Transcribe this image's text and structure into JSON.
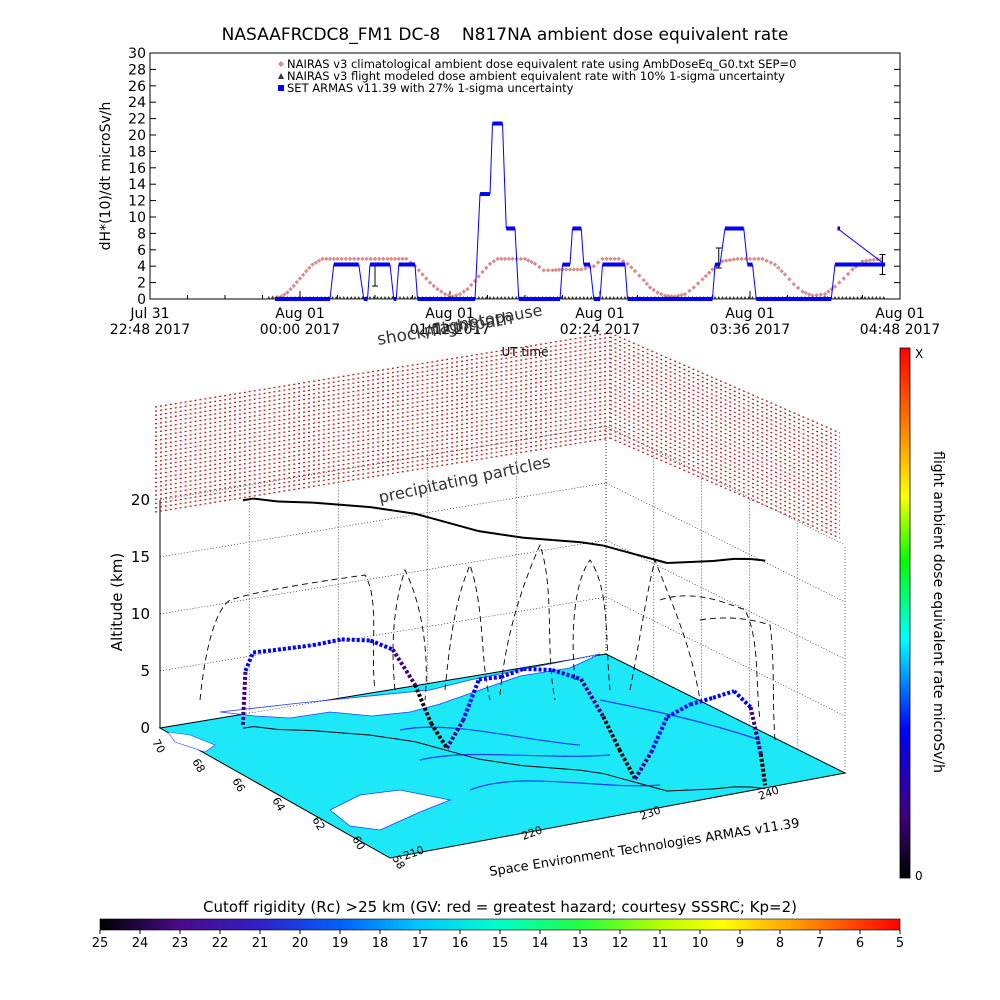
{
  "chart_data": [
    {
      "type": "scatter",
      "title": "NASAAFRCDC8_FM1 DC-8    N817NA ambient dose equivalent rate",
      "xlabel": "UT time",
      "ylabel": "dH*(10)/dt microSv/h",
      "ylim": [
        0,
        30
      ],
      "yticks": [
        0,
        2,
        4,
        6,
        8,
        10,
        12,
        14,
        16,
        18,
        20,
        22,
        24,
        26,
        28,
        30
      ],
      "xrange_hours": [
        0,
        6
      ],
      "xticks": [
        {
          "hour": 0.0,
          "day": "Jul 31",
          "time": "22:48 2017"
        },
        {
          "hour": 1.2,
          "day": "Aug 01",
          "time": "00:00 2017"
        },
        {
          "hour": 2.4,
          "day": "Aug 01",
          "time": "01:12 2017"
        },
        {
          "hour": 3.6,
          "day": "Aug 01",
          "time": "02:24 2017"
        },
        {
          "hour": 4.8,
          "day": "Aug 01",
          "time": "03:36 2017"
        },
        {
          "hour": 6.0,
          "day": "Aug 01",
          "time": "04:48 2017"
        }
      ],
      "legend_position": "top-right",
      "legend": [
        {
          "name": "NAIRAS v3 climatological ambient dose equivalent rate using AmbDoseEq_G0.txt SEP=0",
          "marker": "diamond",
          "color": "#d98c8c"
        },
        {
          "name": "NAIRAS v3 flight modeled dose ambient equivalent rate with 10% 1-sigma uncertainty",
          "marker": "triangle",
          "color": "#333333"
        },
        {
          "name": "SET ARMAS v11.39 with 27% 1-sigma uncertainty",
          "marker": "square",
          "color": "#0000ff"
        }
      ],
      "series": [
        {
          "name": "NAIRAS v3 climatological ambient dose equivalent rate using AmbDoseEq_G0.txt SEP=0",
          "points": [
            [
              0.95,
              0.1
            ],
            [
              1.05,
              0.3
            ],
            [
              1.1,
              0.8
            ],
            [
              1.15,
              1.6
            ],
            [
              1.2,
              2.5
            ],
            [
              1.25,
              3.4
            ],
            [
              1.3,
              4.2
            ],
            [
              1.38,
              4.9
            ],
            [
              1.5,
              4.9
            ],
            [
              1.7,
              4.9
            ],
            [
              1.9,
              4.9
            ],
            [
              2.05,
              4.9
            ],
            [
              2.12,
              4.0
            ],
            [
              2.18,
              3.0
            ],
            [
              2.24,
              2.0
            ],
            [
              2.3,
              1.2
            ],
            [
              2.36,
              0.6
            ],
            [
              2.42,
              0.3
            ],
            [
              2.48,
              0.6
            ],
            [
              2.54,
              1.2
            ],
            [
              2.6,
              2.2
            ],
            [
              2.66,
              3.3
            ],
            [
              2.72,
              4.3
            ],
            [
              2.78,
              4.9
            ],
            [
              2.9,
              4.9
            ],
            [
              3.0,
              4.9
            ],
            [
              3.08,
              4.3
            ],
            [
              3.15,
              3.5
            ],
            [
              3.22,
              3.5
            ],
            [
              3.3,
              3.6
            ],
            [
              3.45,
              3.6
            ],
            [
              3.55,
              4.0
            ],
            [
              3.62,
              4.9
            ],
            [
              3.75,
              4.9
            ],
            [
              3.82,
              4.3
            ],
            [
              3.88,
              3.4
            ],
            [
              3.95,
              2.3
            ],
            [
              4.0,
              1.4
            ],
            [
              4.06,
              0.8
            ],
            [
              4.12,
              0.4
            ],
            [
              4.2,
              0.3
            ],
            [
              4.28,
              0.6
            ],
            [
              4.35,
              1.4
            ],
            [
              4.42,
              2.4
            ],
            [
              4.5,
              3.6
            ],
            [
              4.58,
              4.6
            ],
            [
              4.7,
              4.9
            ],
            [
              4.9,
              4.9
            ],
            [
              5.0,
              4.2
            ],
            [
              5.08,
              3.0
            ],
            [
              5.15,
              1.8
            ],
            [
              5.22,
              0.9
            ],
            [
              5.3,
              0.4
            ],
            [
              5.4,
              0.6
            ],
            [
              5.48,
              1.5
            ],
            [
              5.55,
              2.5
            ],
            [
              5.62,
              3.6
            ],
            [
              5.7,
              4.6
            ],
            [
              5.85,
              4.9
            ]
          ]
        },
        {
          "name": "NAIRAS v3 flight modeled dose ambient equivalent rate with 10% 1-sigma uncertainty",
          "points": [
            [
              0.95,
              0
            ],
            [
              1.4,
              0
            ],
            [
              1.8,
              0
            ],
            [
              2.2,
              0
            ],
            [
              2.6,
              0
            ],
            [
              3.0,
              0
            ],
            [
              3.4,
              0
            ],
            [
              3.8,
              0
            ],
            [
              4.2,
              0
            ],
            [
              4.6,
              0
            ],
            [
              5.0,
              0
            ],
            [
              5.4,
              0
            ],
            [
              5.8,
              0
            ],
            [
              5.88,
              0
            ]
          ],
          "error_bars": [
            [
              1.8,
              2.8
            ],
            [
              4.55,
              5.0
            ],
            [
              5.86,
              4.2
            ]
          ]
        },
        {
          "name": "SET ARMAS v11.39 with 27% 1-sigma uncertainty",
          "segments": [
            [
              [
                1.0,
                0
              ],
              [
                1.44,
                0
              ]
            ],
            [
              [
                1.47,
                4.2
              ],
              [
                1.67,
                4.2
              ]
            ],
            [
              [
                1.71,
                0
              ],
              [
                1.74,
                0
              ]
            ],
            [
              [
                1.76,
                4.2
              ],
              [
                1.92,
                4.2
              ]
            ],
            [
              [
                1.95,
                0
              ],
              [
                1.97,
                0
              ]
            ],
            [
              [
                1.99,
                4.2
              ],
              [
                2.12,
                4.2
              ]
            ],
            [
              [
                2.14,
                0
              ],
              [
                2.6,
                0
              ]
            ],
            [
              [
                2.64,
                12.8
              ],
              [
                2.72,
                12.8
              ]
            ],
            [
              [
                2.74,
                21.4
              ],
              [
                2.82,
                21.4
              ]
            ],
            [
              [
                2.85,
                8.6
              ],
              [
                2.92,
                8.6
              ]
            ],
            [
              [
                2.95,
                0
              ],
              [
                3.28,
                0
              ]
            ],
            [
              [
                3.3,
                4.2
              ],
              [
                3.36,
                4.2
              ]
            ],
            [
              [
                3.38,
                8.6
              ],
              [
                3.45,
                8.6
              ]
            ],
            [
              [
                3.47,
                4.2
              ],
              [
                3.52,
                4.2
              ]
            ],
            [
              [
                3.55,
                0
              ],
              [
                3.6,
                0
              ]
            ],
            [
              [
                3.62,
                4.2
              ],
              [
                3.8,
                4.2
              ]
            ],
            [
              [
                3.82,
                0
              ],
              [
                4.5,
                0
              ]
            ],
            [
              [
                4.52,
                4.2
              ],
              [
                4.56,
                4.2
              ]
            ],
            [
              [
                4.6,
                8.6
              ],
              [
                4.75,
                8.6
              ]
            ],
            [
              [
                4.78,
                4.2
              ],
              [
                4.82,
                4.2
              ]
            ],
            [
              [
                4.85,
                0
              ],
              [
                5.45,
                0
              ]
            ],
            [
              [
                5.48,
                4.2
              ],
              [
                5.88,
                4.2
              ]
            ],
            [
              [
                5.5,
                8.6
              ],
              [
                5.52,
                8.6
              ]
            ]
          ]
        }
      ]
    },
    {
      "type": "scatter",
      "title": "",
      "ylabel": "Altitude (km)",
      "zlim": [
        0,
        20
      ],
      "zticks": [
        0,
        5,
        10,
        15,
        20
      ],
      "lat_ticks": [
        "70",
        "68",
        "66",
        "64",
        "62",
        "60",
        "58"
      ],
      "lon_ticks": [
        "210",
        "220",
        "230",
        "240"
      ],
      "annotations": [
        "shock/flightpath",
        "magnetopause",
        "precipitating particles"
      ],
      "credit": "Space Environment Technologies ARMAS v11.39",
      "side_colorbar": {
        "label": "flight ambient dose equivalent rate microSv/h",
        "top": "X",
        "bottom": "0",
        "colors": [
          "#000000",
          "#400080",
          "#0000ff",
          "#00ffff",
          "#00ff00",
          "#ffff00",
          "#ff8000",
          "#ff0000"
        ]
      },
      "flight_track_3d": [
        [
          215,
          69,
          0.3
        ],
        [
          215.2,
          69,
          5
        ],
        [
          215.8,
          69,
          6.5
        ],
        [
          217,
          68.5,
          7
        ],
        [
          219,
          68,
          7.5
        ],
        [
          220.5,
          67.5,
          8.2
        ],
        [
          222,
          67,
          8.3
        ],
        [
          223,
          66.5,
          7.8
        ],
        [
          224,
          66,
          5
        ],
        [
          224.5,
          65.5,
          2
        ],
        [
          225,
          65,
          0.2
        ],
        [
          225.5,
          64.5,
          3
        ],
        [
          226,
          64,
          7
        ],
        [
          227,
          63.5,
          7.5
        ],
        [
          228,
          63,
          8.5
        ],
        [
          229.5,
          62.5,
          8.6
        ],
        [
          231,
          62,
          8
        ],
        [
          232,
          61.5,
          5
        ],
        [
          232.5,
          61,
          2.5
        ],
        [
          233,
          60.5,
          0.3
        ],
        [
          233.5,
          60,
          3
        ],
        [
          234,
          59.5,
          6.5
        ],
        [
          235.5,
          59.3,
          7.5
        ],
        [
          237,
          59.1,
          8
        ],
        [
          238.5,
          59,
          8.4
        ],
        [
          239.5,
          58.8,
          7
        ],
        [
          240,
          58.6,
          3
        ],
        [
          240.2,
          58.5,
          0.3
        ]
      ]
    },
    {
      "type": "heatmap",
      "title": "Cutoff rigidity (Rc) >25 km (GV: red = greatest hazard; courtesy SSSRC; Kp=2)",
      "colorbar_ticks": [
        "25",
        "24",
        "23",
        "22",
        "21",
        "20",
        "19",
        "18",
        "17",
        "16",
        "15",
        "14",
        "13",
        "12",
        "11",
        "10",
        "9",
        "8",
        "7",
        "6",
        "5"
      ],
      "colors": [
        "#000000",
        "#4a0a8a",
        "#3020c8",
        "#0060ff",
        "#00c8ff",
        "#00ffc8",
        "#20ff40",
        "#b4ff00",
        "#ffff00",
        "#ffb000",
        "#ff5000",
        "#ff0000"
      ]
    }
  ]
}
